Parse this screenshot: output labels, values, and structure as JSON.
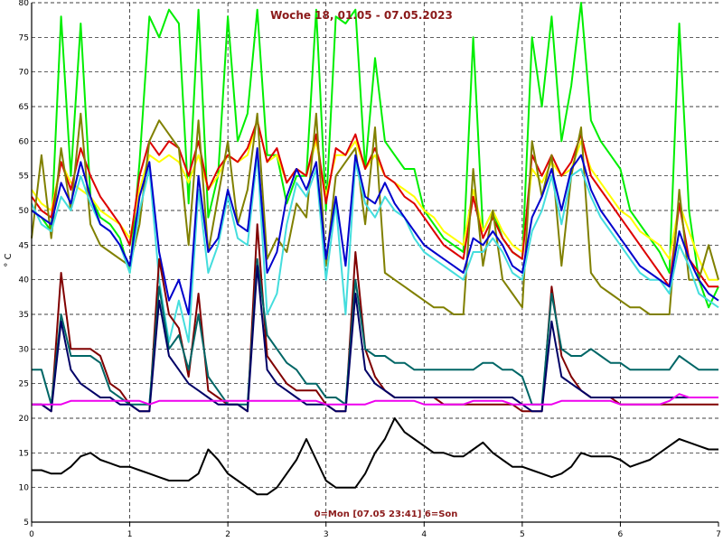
{
  "chart_data": {
    "type": "line",
    "title": "Woche 18, 01.05 - 07.05.2023",
    "xlabel": "0=Mon [07.05 23:41] 6=Son",
    "ylabel": "° C",
    "xlim": [
      0,
      7
    ],
    "ylim": [
      5,
      80
    ],
    "xticks": [
      "0",
      "1",
      "2",
      "3",
      "4",
      "5",
      "6",
      "7"
    ],
    "yticks": [
      "5",
      "10",
      "15",
      "20",
      "25",
      "30",
      "35",
      "40",
      "45",
      "50",
      "55",
      "60",
      "65",
      "70",
      "75",
      "80"
    ],
    "grid": true,
    "x": [
      0,
      0.1,
      0.2,
      0.3,
      0.4,
      0.5,
      0.6,
      0.7,
      0.8,
      0.9,
      1,
      1.1,
      1.2,
      1.3,
      1.4,
      1.5,
      1.6,
      1.7,
      1.8,
      1.9,
      2,
      2.1,
      2.2,
      2.3,
      2.4,
      2.5,
      2.6,
      2.7,
      2.8,
      2.9,
      3,
      3.1,
      3.2,
      3.3,
      3.4,
      3.5,
      3.6,
      3.7,
      3.8,
      3.9,
      4,
      4.1,
      4.2,
      4.3,
      4.4,
      4.5,
      4.6,
      4.7,
      4.8,
      4.9,
      5,
      5.1,
      5.2,
      5.3,
      5.4,
      5.5,
      5.6,
      5.7,
      5.8,
      5.9,
      6,
      6.1,
      6.2,
      6.3,
      6.4,
      6.5,
      6.6,
      6.7,
      6.8,
      6.9,
      7
    ],
    "series": [
      {
        "color": "#00ee00",
        "values": [
          50,
          49,
          47,
          78,
          55,
          77,
          52,
          49,
          48,
          46,
          41,
          57,
          78,
          75,
          79,
          77,
          51,
          79,
          49,
          55,
          78,
          60,
          64,
          79,
          58,
          58,
          51,
          55,
          55,
          79,
          50,
          78,
          77,
          79,
          56,
          72,
          60,
          58,
          56,
          56,
          50,
          48,
          46,
          45,
          44,
          75,
          47,
          50,
          46,
          44,
          43,
          75,
          65,
          78,
          60,
          68,
          80,
          63,
          60,
          58,
          56,
          50,
          48,
          46,
          44,
          41,
          77,
          50,
          40,
          36,
          39
        ]
      },
      {
        "color": "#ffff00",
        "values": [
          53,
          51,
          50,
          57,
          54,
          53,
          52,
          50,
          49,
          48,
          46,
          53,
          58,
          57,
          58,
          57,
          54,
          58,
          53,
          55,
          58,
          57,
          58,
          63,
          57,
          58,
          54,
          56,
          55,
          60,
          52,
          58,
          58,
          60,
          56,
          58,
          55,
          54,
          53,
          52,
          50,
          49,
          47,
          46,
          45,
          53,
          47,
          50,
          47,
          45,
          44,
          56,
          54,
          57,
          55,
          56,
          60,
          56,
          54,
          52,
          50,
          49,
          47,
          46,
          45,
          43,
          51,
          47,
          43,
          40,
          40
        ]
      },
      {
        "color": "#dd0000",
        "values": [
          52,
          50,
          49,
          57,
          53,
          59,
          55,
          52,
          50,
          48,
          45,
          55,
          60,
          58,
          60,
          59,
          55,
          60,
          53,
          56,
          58,
          57,
          59,
          63,
          57,
          59,
          54,
          56,
          55,
          61,
          51,
          59,
          58,
          61,
          56,
          59,
          55,
          54,
          52,
          51,
          49,
          47,
          45,
          44,
          43,
          52,
          46,
          49,
          46,
          44,
          43,
          58,
          55,
          58,
          55,
          57,
          61,
          55,
          53,
          51,
          49,
          47,
          45,
          43,
          41,
          39,
          51,
          43,
          41,
          39,
          39
        ]
      },
      {
        "color": "#808000",
        "values": [
          46,
          58,
          46,
          59,
          50,
          64,
          48,
          45,
          44,
          43,
          42,
          48,
          60,
          63,
          61,
          59,
          45,
          63,
          44,
          52,
          60,
          48,
          53,
          64,
          43,
          46,
          44,
          51,
          49,
          64,
          42,
          55,
          57,
          59,
          48,
          62,
          41,
          40,
          39,
          38,
          37,
          36,
          36,
          35,
          35,
          56,
          42,
          50,
          40,
          38,
          36,
          60,
          52,
          58,
          42,
          55,
          62,
          41,
          39,
          38,
          37,
          36,
          36,
          35,
          35,
          35,
          53,
          40,
          40,
          45,
          40
        ]
      },
      {
        "color": "#44dddd",
        "values": [
          51,
          48,
          47,
          52,
          50,
          55,
          51,
          48,
          47,
          45,
          41,
          50,
          56,
          40,
          31,
          37,
          31,
          53,
          41,
          45,
          52,
          46,
          45,
          58,
          35,
          38,
          48,
          54,
          52,
          56,
          40,
          51,
          35,
          57,
          51,
          49,
          52,
          50,
          49,
          46,
          44,
          43,
          42,
          41,
          40,
          44,
          44,
          46,
          44,
          41,
          40,
          47,
          50,
          55,
          48,
          55,
          56,
          52,
          49,
          47,
          45,
          43,
          41,
          40,
          40,
          38,
          45,
          42,
          38,
          37,
          36
        ]
      },
      {
        "color": "#0000cc",
        "values": [
          50,
          49,
          48,
          54,
          51,
          57,
          52,
          48,
          47,
          45,
          42,
          52,
          57,
          44,
          37,
          40,
          35,
          55,
          44,
          46,
          53,
          48,
          47,
          59,
          41,
          44,
          52,
          56,
          53,
          57,
          43,
          52,
          42,
          58,
          52,
          51,
          54,
          51,
          49,
          47,
          45,
          44,
          43,
          42,
          41,
          46,
          45,
          47,
          45,
          42,
          41,
          49,
          52,
          56,
          50,
          56,
          58,
          53,
          50,
          48,
          46,
          44,
          42,
          41,
          40,
          39,
          47,
          43,
          40,
          38,
          37
        ]
      },
      {
        "color": "#800000",
        "values": [
          22,
          22,
          21,
          41,
          30,
          30,
          30,
          29,
          25,
          24,
          22,
          21,
          21,
          43,
          35,
          33,
          26,
          38,
          24,
          23,
          22,
          22,
          21,
          48,
          29,
          27,
          25,
          24,
          24,
          24,
          22,
          21,
          21,
          44,
          30,
          26,
          24,
          23,
          23,
          23,
          23,
          23,
          22,
          22,
          22,
          22,
          22,
          22,
          22,
          22,
          21,
          21,
          21,
          39,
          29,
          26,
          24,
          23,
          23,
          23,
          22,
          22,
          22,
          22,
          22,
          22,
          22,
          22,
          22,
          22,
          22
        ]
      },
      {
        "color": "#006666",
        "values": [
          27,
          27,
          22,
          35,
          29,
          29,
          29,
          28,
          24,
          23,
          22,
          22,
          22,
          39,
          30,
          32,
          27,
          35,
          26,
          24,
          22,
          22,
          22,
          43,
          32,
          30,
          28,
          27,
          25,
          25,
          23,
          23,
          22,
          40,
          30,
          29,
          29,
          28,
          28,
          27,
          27,
          27,
          27,
          27,
          27,
          27,
          28,
          28,
          27,
          27,
          26,
          22,
          22,
          38,
          30,
          29,
          29,
          30,
          29,
          28,
          28,
          27,
          27,
          27,
          27,
          27,
          29,
          28,
          27,
          27,
          27
        ]
      },
      {
        "color": "#000066",
        "values": [
          22,
          22,
          21,
          34,
          27,
          25,
          24,
          23,
          23,
          22,
          22,
          21,
          21,
          37,
          29,
          27,
          25,
          24,
          23,
          22,
          22,
          22,
          21,
          42,
          27,
          25,
          24,
          23,
          22,
          22,
          22,
          21,
          21,
          38,
          27,
          25,
          24,
          23,
          23,
          23,
          23,
          23,
          23,
          23,
          23,
          23,
          23,
          23,
          23,
          23,
          22,
          21,
          21,
          34,
          26,
          25,
          24,
          23,
          23,
          23,
          23,
          23,
          23,
          23,
          23,
          23,
          23,
          23,
          23,
          23,
          23
        ]
      },
      {
        "color": "#ee00ee",
        "values": [
          22,
          22,
          22,
          22,
          22.5,
          22.5,
          22.5,
          22.5,
          22.5,
          22.5,
          22.5,
          22.5,
          22,
          22.5,
          22.5,
          22.5,
          22.5,
          22.5,
          22.5,
          22.5,
          22.5,
          22.5,
          22.5,
          22.5,
          22.5,
          22.5,
          22.5,
          22.5,
          22.5,
          22.5,
          22,
          22,
          22,
          22,
          22,
          22.5,
          22.5,
          22.5,
          22.5,
          22.5,
          22,
          22,
          22,
          22,
          22,
          22.5,
          22.5,
          22.5,
          22.5,
          22,
          22,
          22,
          22,
          22,
          22.5,
          22.5,
          22.5,
          22.5,
          22.5,
          22.5,
          22,
          22,
          22,
          22,
          22,
          22.5,
          23.5,
          23,
          23,
          23,
          23
        ]
      },
      {
        "color": "#000000",
        "values": [
          12.5,
          12.5,
          12,
          12,
          13,
          14.5,
          15,
          14,
          13.5,
          13,
          13,
          12.5,
          12,
          11.5,
          11,
          11,
          11,
          12,
          15.5,
          14,
          12,
          11,
          10,
          9,
          9,
          10,
          12,
          14,
          17,
          14,
          11,
          10,
          10,
          10,
          12,
          15,
          17,
          20,
          18,
          17,
          16,
          15,
          15,
          14.5,
          14.5,
          15.5,
          16.5,
          15,
          14,
          13,
          13,
          12.5,
          12,
          11.5,
          12,
          13,
          15,
          14.5,
          14.5,
          14.5,
          14,
          13,
          13.5,
          14,
          15,
          16,
          17,
          16.5,
          16,
          15.5,
          15.5
        ]
      }
    ]
  }
}
